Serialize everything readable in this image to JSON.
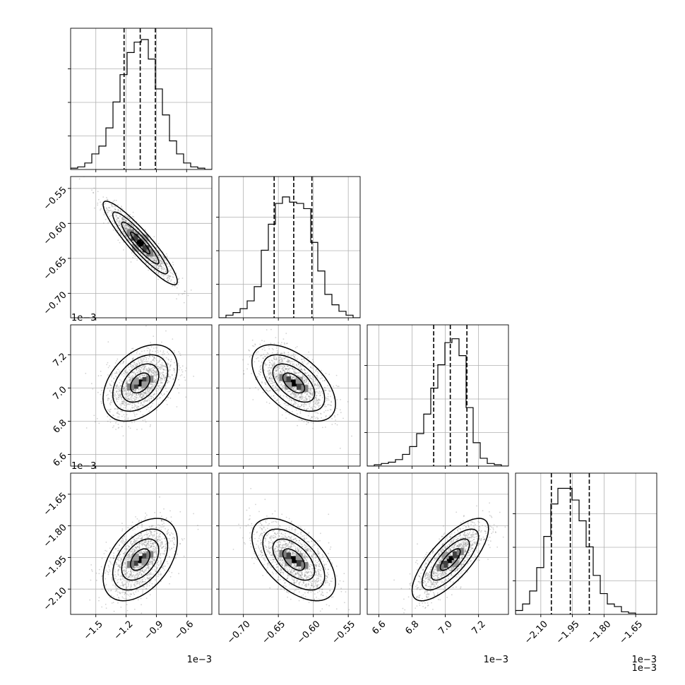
{
  "chart_data": {
    "type": "corner",
    "parameter_count": 4,
    "grid": true,
    "quantiles": [
      0.16,
      0.5,
      0.84
    ],
    "colors": {
      "line": "#000000",
      "points": "#7f7f7f",
      "grid": "#b0b0b0",
      "frame": "#000000"
    },
    "parameters": [
      {
        "range": [
          -1.75,
          -0.35
        ],
        "ticks": [
          -1.5,
          -1.2,
          -0.9,
          -0.6
        ],
        "tick_labels": [
          "−1.5",
          "−1.2",
          "−0.9",
          "−0.6"
        ],
        "offset_text": "1e−3",
        "mean": -1.06,
        "sd": 0.16,
        "quantile_values": [
          -1.22,
          -1.06,
          -0.91
        ],
        "histogram": [
          0.01,
          0.02,
          0.05,
          0.12,
          0.18,
          0.32,
          0.52,
          0.73,
          0.9,
          0.98,
          1.0,
          0.85,
          0.62,
          0.42,
          0.22,
          0.12,
          0.05,
          0.02,
          0.01,
          0.0
        ]
      },
      {
        "range": [
          -0.735,
          -0.533
        ],
        "ticks": [
          -0.7,
          -0.65,
          -0.6,
          -0.55
        ],
        "tick_labels": [
          "−0.70",
          "−0.65",
          "−0.60",
          "−0.55"
        ],
        "offset_text": "",
        "mean": -0.628,
        "sd": 0.026,
        "quantile_values": [
          -0.656,
          -0.628,
          -0.602
        ],
        "histogram": [
          0.0,
          0.02,
          0.04,
          0.07,
          0.13,
          0.24,
          0.52,
          0.72,
          0.88,
          0.93,
          0.89,
          0.88,
          0.84,
          0.58,
          0.36,
          0.18,
          0.1,
          0.05,
          0.02,
          0.0
        ]
      },
      {
        "range": [
          6.53,
          7.38
        ],
        "ticks": [
          6.6,
          6.8,
          7.0,
          7.2
        ],
        "tick_labels": [
          "6.6",
          "6.8",
          "7.0",
          "7.2"
        ],
        "offset_text": "1e−3",
        "mean": 7.03,
        "sd": 0.1,
        "quantile_values": [
          6.93,
          7.03,
          7.13
        ],
        "histogram": [
          0.0,
          0.01,
          0.02,
          0.03,
          0.05,
          0.09,
          0.15,
          0.25,
          0.4,
          0.6,
          0.78,
          0.95,
          0.98,
          0.85,
          0.45,
          0.18,
          0.06,
          0.02,
          0.01,
          0.0
        ]
      },
      {
        "range": [
          -2.22,
          -1.55
        ],
        "ticks": [
          -2.1,
          -1.95,
          -1.8,
          -1.65
        ],
        "tick_labels": [
          "−2.10",
          "−1.95",
          "−1.80",
          "−1.65"
        ],
        "offset_text": "1e−3",
        "mean": -1.96,
        "sd": 0.085,
        "quantile_values": [
          -2.05,
          -1.96,
          -1.87
        ],
        "histogram": [
          0.03,
          0.08,
          0.18,
          0.36,
          0.6,
          0.85,
          0.97,
          0.97,
          0.88,
          0.72,
          0.52,
          0.3,
          0.16,
          0.08,
          0.06,
          0.02,
          0.01,
          0.0,
          0.0,
          0.0
        ]
      }
    ],
    "correlations": [
      {
        "row": 1,
        "col": 0,
        "r": -0.92
      },
      {
        "row": 2,
        "col": 0,
        "r": 0.4
      },
      {
        "row": 2,
        "col": 1,
        "r": -0.55
      },
      {
        "row": 3,
        "col": 0,
        "r": 0.45
      },
      {
        "row": 3,
        "col": 1,
        "r": -0.55
      },
      {
        "row": 3,
        "col": 2,
        "r": 0.75
      }
    ]
  }
}
